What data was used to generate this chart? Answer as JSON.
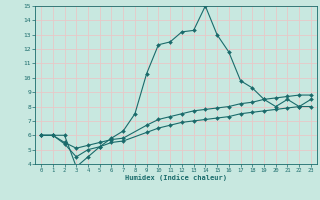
{
  "xlabel": "Humidex (Indice chaleur)",
  "xlim": [
    -0.5,
    23.5
  ],
  "ylim": [
    4,
    15
  ],
  "xticks": [
    0,
    1,
    2,
    3,
    4,
    5,
    6,
    7,
    8,
    9,
    10,
    11,
    12,
    13,
    14,
    15,
    16,
    17,
    18,
    19,
    20,
    21,
    22,
    23
  ],
  "yticks": [
    4,
    5,
    6,
    7,
    8,
    9,
    10,
    11,
    12,
    13,
    14,
    15
  ],
  "background_color": "#c8e8e0",
  "grid_color": "#e8c8c8",
  "line_color": "#1a6b6b",
  "line1_x": [
    0,
    1,
    2,
    3,
    4,
    5,
    6,
    7,
    8,
    9,
    10,
    11,
    12,
    13,
    14,
    15,
    16,
    17,
    18,
    19,
    20,
    21,
    22,
    23
  ],
  "line1_y": [
    6.0,
    6.0,
    6.0,
    3.8,
    4.5,
    5.2,
    5.8,
    6.3,
    7.5,
    10.3,
    12.3,
    12.5,
    13.2,
    13.3,
    15.0,
    13.0,
    11.8,
    9.8,
    9.3,
    8.5,
    8.0,
    8.5,
    8.0,
    8.5
  ],
  "line2_x": [
    0,
    1,
    2,
    3,
    4,
    5,
    6,
    7,
    9,
    10,
    11,
    12,
    13,
    14,
    15,
    16,
    17,
    18,
    19,
    20,
    21,
    22,
    23
  ],
  "line2_y": [
    6.0,
    6.0,
    5.5,
    5.1,
    5.3,
    5.5,
    5.7,
    5.8,
    6.7,
    7.1,
    7.3,
    7.5,
    7.7,
    7.8,
    7.9,
    8.0,
    8.2,
    8.3,
    8.5,
    8.6,
    8.7,
    8.8,
    8.8
  ],
  "line3_x": [
    0,
    1,
    2,
    3,
    4,
    5,
    6,
    7,
    9,
    10,
    11,
    12,
    13,
    14,
    15,
    16,
    17,
    18,
    19,
    20,
    21,
    22,
    23
  ],
  "line3_y": [
    6.0,
    6.0,
    5.4,
    4.5,
    5.0,
    5.2,
    5.5,
    5.6,
    6.2,
    6.5,
    6.7,
    6.9,
    7.0,
    7.1,
    7.2,
    7.3,
    7.5,
    7.6,
    7.7,
    7.8,
    7.9,
    8.0,
    8.0
  ]
}
